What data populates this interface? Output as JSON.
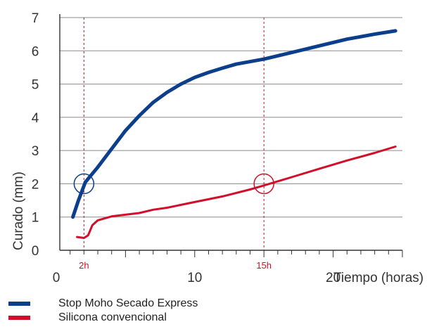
{
  "chart_data": {
    "type": "line",
    "title": "",
    "xlabel": "Tiempo (horas)",
    "ylabel": "Curado (mm)",
    "xlim": [
      0,
      25
    ],
    "ylim": [
      0,
      7
    ],
    "x_ticks": [
      {
        "value": 0,
        "label": "0"
      },
      {
        "value": 10,
        "label": "10"
      },
      {
        "value": 20,
        "label": "20"
      }
    ],
    "y_ticks": [
      0,
      1,
      2,
      3,
      4,
      5,
      6,
      7
    ],
    "grid": "horizontal",
    "reference_lines": [
      {
        "x": 2,
        "label": "2h"
      },
      {
        "x": 15,
        "label": "15h"
      }
    ],
    "highlighted_points": [
      {
        "series": "Stop Moho Secado Express",
        "x": 2,
        "y": 2
      },
      {
        "series": "Silicona convencional",
        "x": 15,
        "y": 2
      }
    ],
    "series": [
      {
        "name": "Stop Moho Secado Express",
        "color": "#0b3f8c",
        "points": [
          [
            1.2,
            1.0
          ],
          [
            1.6,
            1.5
          ],
          [
            2.1,
            2.05
          ],
          [
            3,
            2.5
          ],
          [
            4,
            3.05
          ],
          [
            5,
            3.6
          ],
          [
            6,
            4.05
          ],
          [
            7,
            4.45
          ],
          [
            8,
            4.75
          ],
          [
            9,
            5.0
          ],
          [
            10,
            5.2
          ],
          [
            11,
            5.35
          ],
          [
            12,
            5.48
          ],
          [
            13,
            5.6
          ],
          [
            15,
            5.75
          ],
          [
            17,
            5.95
          ],
          [
            19,
            6.15
          ],
          [
            21,
            6.35
          ],
          [
            23,
            6.5
          ],
          [
            24.5,
            6.6
          ]
        ]
      },
      {
        "name": "Silicona convencional",
        "color": "#d0102a",
        "points": [
          [
            1.5,
            0.4
          ],
          [
            2,
            0.37
          ],
          [
            2.3,
            0.45
          ],
          [
            2.6,
            0.75
          ],
          [
            3,
            0.9
          ],
          [
            4,
            1.02
          ],
          [
            6,
            1.12
          ],
          [
            7,
            1.22
          ],
          [
            8,
            1.28
          ],
          [
            10,
            1.45
          ],
          [
            12,
            1.62
          ],
          [
            14,
            1.83
          ],
          [
            15,
            1.95
          ],
          [
            17,
            2.2
          ],
          [
            19,
            2.45
          ],
          [
            21,
            2.7
          ],
          [
            23,
            2.93
          ],
          [
            24.5,
            3.12
          ]
        ]
      }
    ]
  }
}
